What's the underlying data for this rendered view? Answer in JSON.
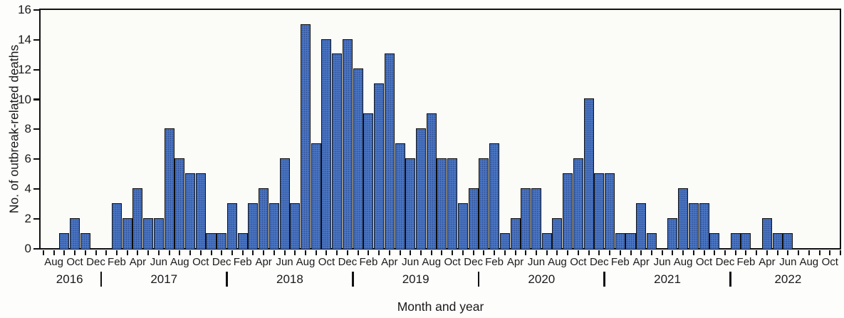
{
  "figure": {
    "xlabel": "Month and year",
    "ylabel": "No. of outbreak-related deaths"
  },
  "chart_data": {
    "type": "bar",
    "title": "",
    "xlabel": "Month and year",
    "ylabel": "No. of outbreak-related deaths",
    "ylim": [
      0,
      16
    ],
    "yticks": [
      0,
      2,
      4,
      6,
      8,
      10,
      12,
      14,
      16
    ],
    "grid": "off",
    "x_axis_note": "ticks every month from Jul 2016 to Nov 2022; labels every other month starting Aug 2016",
    "bar_color": "#4a75c2",
    "bar_border_color": "#0d0d0d",
    "months": [
      "Jul 2016",
      "Aug 2016",
      "Sep 2016",
      "Oct 2016",
      "Nov 2016",
      "Dec 2016",
      "Jan 2017",
      "Feb 2017",
      "Mar 2017",
      "Apr 2017",
      "May 2017",
      "Jun 2017",
      "Jul 2017",
      "Aug 2017",
      "Sep 2017",
      "Oct 2017",
      "Nov 2017",
      "Dec 2017",
      "Jan 2018",
      "Feb 2018",
      "Mar 2018",
      "Apr 2018",
      "May 2018",
      "Jun 2018",
      "Jul 2018",
      "Aug 2018",
      "Sep 2018",
      "Oct 2018",
      "Nov 2018",
      "Dec 2018",
      "Jan 2019",
      "Feb 2019",
      "Mar 2019",
      "Apr 2019",
      "May 2019",
      "Jun 2019",
      "Jul 2019",
      "Aug 2019",
      "Sep 2019",
      "Oct 2019",
      "Nov 2019",
      "Dec 2019",
      "Jan 2020",
      "Feb 2020",
      "Mar 2020",
      "Apr 2020",
      "May 2020",
      "Jun 2020",
      "Jul 2020",
      "Aug 2020",
      "Sep 2020",
      "Oct 2020",
      "Nov 2020",
      "Dec 2020",
      "Jan 2021",
      "Feb 2021",
      "Mar 2021",
      "Apr 2021",
      "May 2021",
      "Jun 2021",
      "Jul 2021",
      "Aug 2021",
      "Sep 2021",
      "Oct 2021",
      "Nov 2021",
      "Dec 2021",
      "Jan 2022",
      "Feb 2022",
      "Mar 2022",
      "Apr 2022",
      "May 2022",
      "Jun 2022",
      "Jul 2022",
      "Aug 2022",
      "Sep 2022",
      "Oct 2022",
      "Nov 2022"
    ],
    "values": [
      0,
      0,
      1,
      2,
      1,
      0,
      0,
      3,
      2,
      4,
      2,
      2,
      8,
      6,
      5,
      5,
      1,
      1,
      3,
      1,
      3,
      4,
      3,
      6,
      3,
      15,
      7,
      14,
      13,
      14,
      12,
      9,
      11,
      13,
      7,
      6,
      8,
      9,
      6,
      6,
      3,
      4,
      6,
      7,
      1,
      2,
      4,
      4,
      1,
      2,
      5,
      6,
      10,
      5,
      5,
      1,
      1,
      3,
      1,
      0,
      2,
      4,
      3,
      3,
      1,
      0,
      1,
      1,
      0,
      2,
      1,
      1,
      0,
      0,
      0,
      0,
      0
    ],
    "years": [
      {
        "label": "2016",
        "from_index": 0,
        "to_index": 5
      },
      {
        "label": "2017",
        "from_index": 6,
        "to_index": 17
      },
      {
        "label": "2018",
        "from_index": 18,
        "to_index": 29
      },
      {
        "label": "2019",
        "from_index": 30,
        "to_index": 41
      },
      {
        "label": "2020",
        "from_index": 42,
        "to_index": 53
      },
      {
        "label": "2021",
        "from_index": 54,
        "to_index": 65
      },
      {
        "label": "2022",
        "from_index": 66,
        "to_index": 76
      }
    ]
  }
}
